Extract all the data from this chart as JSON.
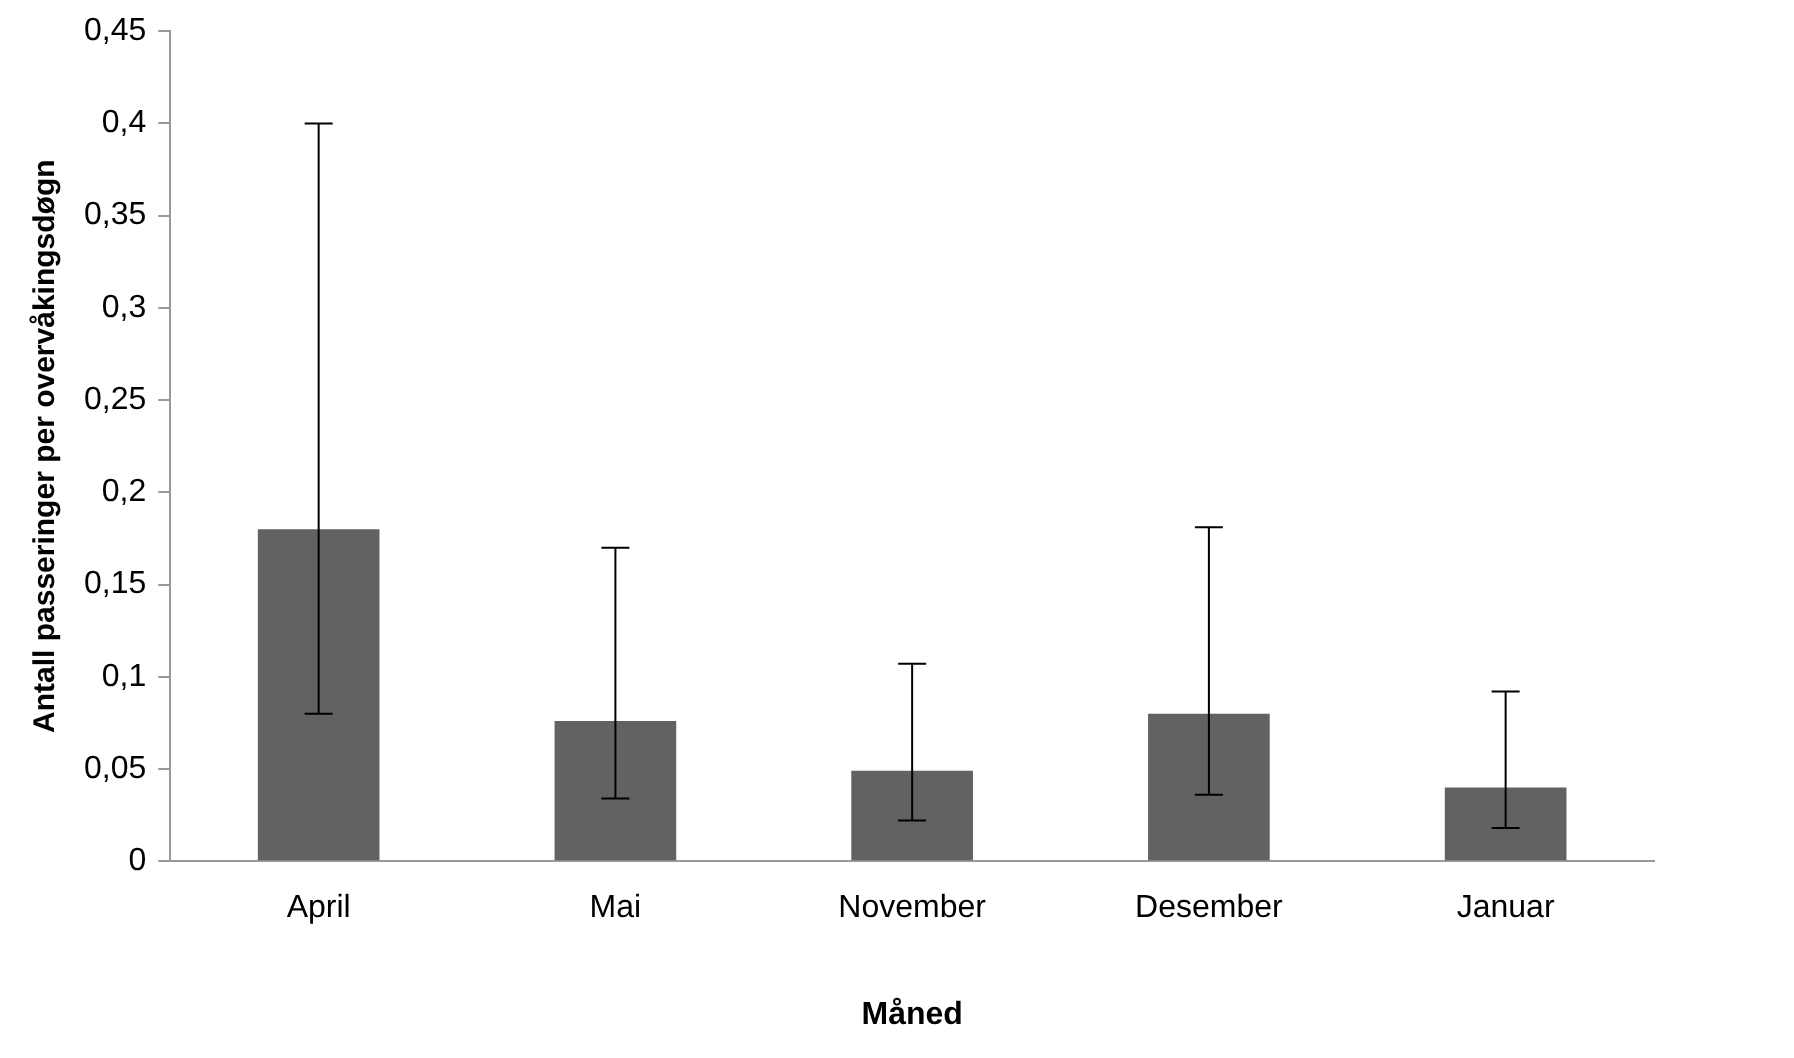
{
  "chart_data": {
    "type": "bar",
    "xlabel": "Måned",
    "ylabel": "Antall passeringer per overvåkingsdøgn",
    "categories": [
      "April",
      "Mai",
      "November",
      "Desember",
      "Januar"
    ],
    "values": [
      0.18,
      0.076,
      0.049,
      0.08,
      0.04
    ],
    "errors": [
      [
        0.08,
        0.4
      ],
      [
        0.034,
        0.17
      ],
      [
        0.022,
        0.107
      ],
      [
        0.036,
        0.181
      ],
      [
        0.018,
        0.092
      ]
    ],
    "color": "#626262",
    "ylim": [
      0,
      0.45
    ],
    "yticks": [
      0,
      {
        "value": 0.05,
        "label": "0,05"
      },
      {
        "value": 0.1,
        "label": "0,1"
      },
      {
        "value": 0.15,
        "label": "0,15"
      },
      {
        "value": 0.2,
        "label": "0,2"
      },
      {
        "value": 0.25,
        "label": "0,25"
      },
      {
        "value": 0.3,
        "label": "0,3"
      },
      {
        "value": 0.35,
        "label": "0,35"
      },
      {
        "value": 0.4,
        "label": "0,4"
      },
      {
        "value": 0.45,
        "label": "0,45"
      }
    ],
    "grid": false,
    "legend": false
  }
}
